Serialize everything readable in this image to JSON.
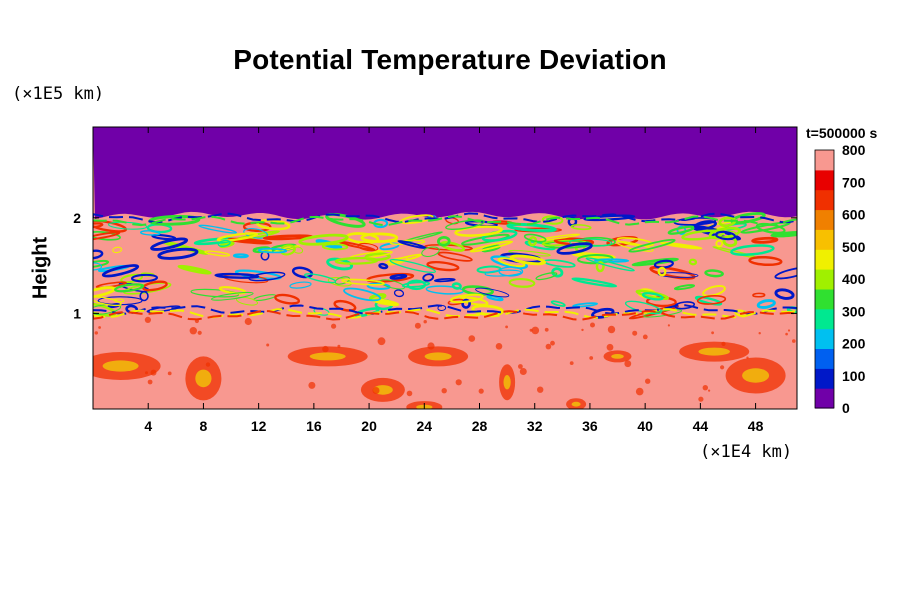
{
  "chart_data": {
    "type": "heatmap",
    "title": "Potential Temperature Deviation",
    "ylabel": "Height",
    "xlabel": "",
    "x_unit": "(×1E4 km)",
    "y_unit": "(×1E5 km)",
    "time_label": "t=500000 s",
    "x_range": [
      0,
      51
    ],
    "y_range": [
      0,
      2.95
    ],
    "x_ticks": [
      4,
      8,
      12,
      16,
      20,
      24,
      28,
      32,
      36,
      40,
      44,
      48
    ],
    "y_ticks": [
      1,
      2
    ],
    "colorbar": {
      "min": 0,
      "max": 800,
      "ticks": [
        0,
        100,
        200,
        300,
        400,
        500,
        600,
        700,
        800
      ],
      "colors": [
        "#7000a8",
        "#0018c8",
        "#0060f0",
        "#00c0f0",
        "#00e890",
        "#30e030",
        "#a0f000",
        "#f0f000",
        "#f8c000",
        "#f08000",
        "#f03000",
        "#e80000",
        "#f89890"
      ]
    },
    "regions": [
      {
        "description_value": "upper layer near 0",
        "y_from": 2.0,
        "y_to": 2.95,
        "value": 0
      },
      {
        "description_value": "turbulent band",
        "y_from": 1.0,
        "y_to": 2.0,
        "value": 800
      },
      {
        "description_value": "lower layer near 800",
        "y_from": 0,
        "y_to": 1.0,
        "value": 800
      }
    ]
  }
}
